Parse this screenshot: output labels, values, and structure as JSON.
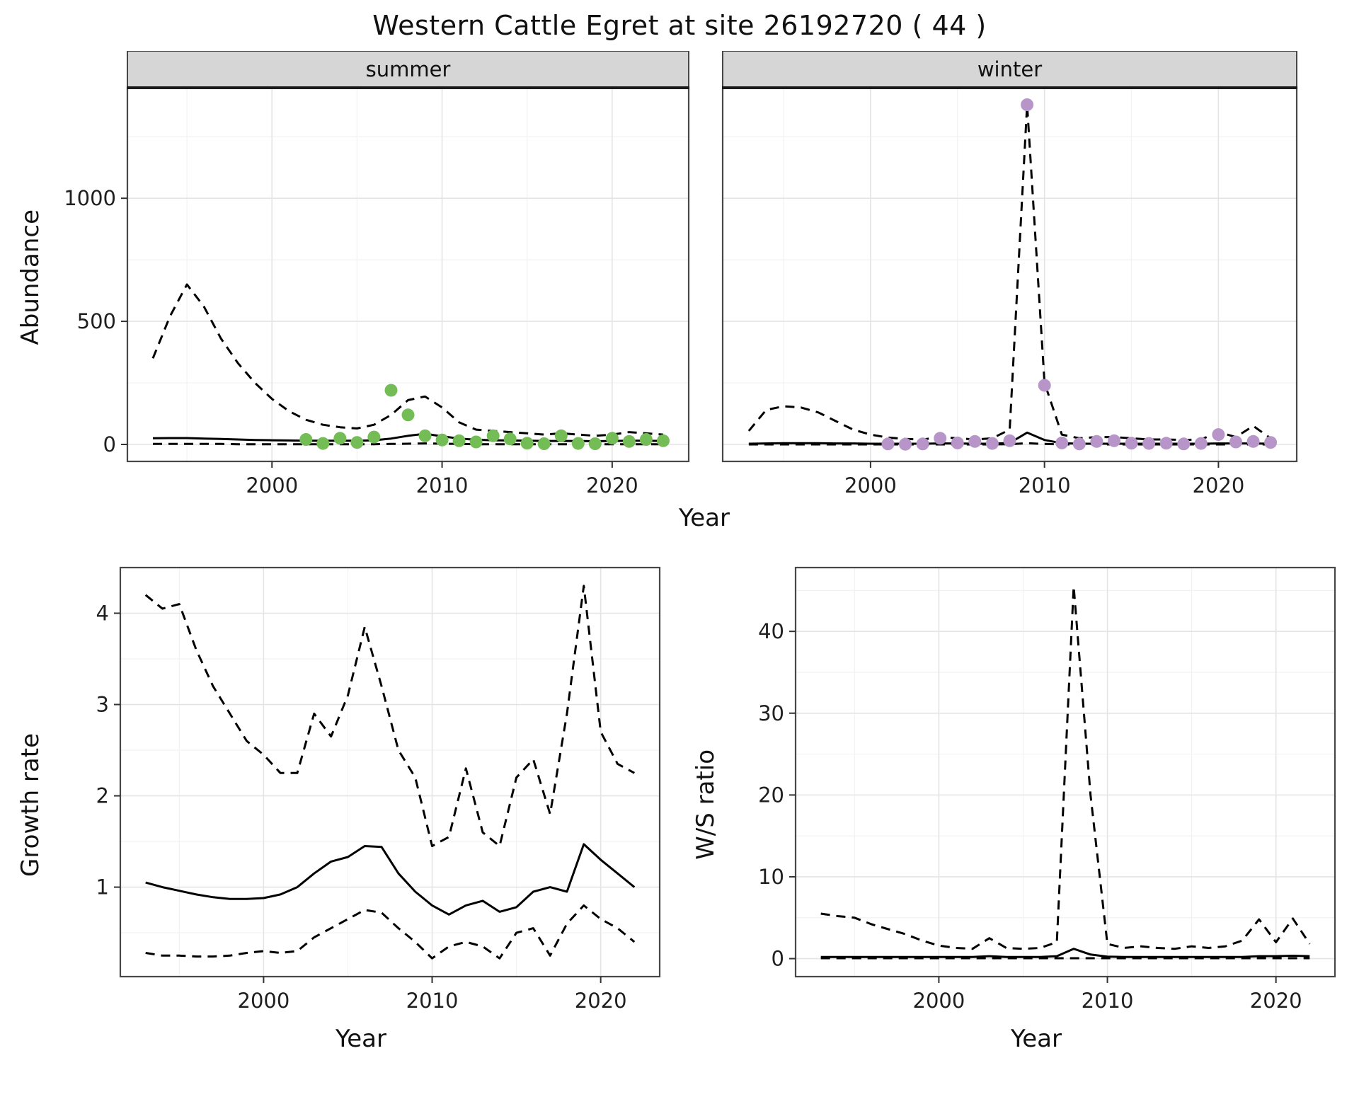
{
  "title": "Western Cattle Egret at site 26192720 ( 44 )",
  "axis_titles": {
    "abundance": "Abundance",
    "year": "Year",
    "growth_rate": "Growth rate",
    "ws_ratio": "W/S ratio"
  },
  "facets": [
    "summer",
    "winter"
  ],
  "colors": {
    "summer_points": "#74bd56",
    "winter_points": "#b795c8",
    "line": "#000000",
    "strip_bg": "#d6d6d6",
    "panel_border": "#474747",
    "grid_major": "#e4e4e4",
    "grid_minor": "#f2f2f2",
    "text": "#1f1f1f"
  },
  "chart_data": [
    {
      "type": "line",
      "panel": "abundance-summer",
      "facet_label": "summer",
      "title": "summer",
      "xlabel": "Year",
      "ylabel": "Abundance",
      "xlim": [
        1991.5,
        2024.5
      ],
      "ylim": [
        -69,
        1449
      ],
      "xticks": [
        2000,
        2010,
        2020
      ],
      "yticks": [
        0,
        500,
        1000
      ],
      "grid": true,
      "years": [
        1993,
        1994,
        1995,
        1996,
        1997,
        1998,
        1999,
        2000,
        2001,
        2002,
        2003,
        2004,
        2005,
        2006,
        2007,
        2008,
        2009,
        2010,
        2011,
        2012,
        2013,
        2014,
        2015,
        2016,
        2017,
        2018,
        2019,
        2020,
        2021,
        2022,
        2023
      ],
      "series": [
        {
          "name": "upper_ci",
          "style": "dashed",
          "y": [
            350,
            520,
            650,
            560,
            430,
            330,
            250,
            185,
            135,
            100,
            80,
            70,
            65,
            80,
            120,
            180,
            195,
            150,
            90,
            60,
            55,
            50,
            45,
            40,
            45,
            40,
            35,
            40,
            50,
            45,
            40
          ]
        },
        {
          "name": "estimate",
          "style": "solid",
          "y": [
            25,
            26,
            26,
            24,
            22,
            20,
            18,
            17,
            16,
            15,
            15,
            15,
            15,
            17,
            24,
            35,
            43,
            33,
            24,
            19,
            17,
            16,
            15,
            14,
            14,
            14,
            13,
            14,
            15,
            15,
            14
          ]
        },
        {
          "name": "lower_ci",
          "style": "dashed",
          "y": [
            2,
            2,
            2,
            2,
            2,
            1,
            1,
            1,
            1,
            1,
            1,
            1,
            1,
            1,
            2,
            3,
            4,
            3,
            2,
            1,
            1,
            1,
            1,
            1,
            1,
            1,
            1,
            1,
            1,
            1,
            1
          ]
        },
        {
          "name": "observed_counts",
          "style": "points",
          "color": "#74bd56",
          "x": [
            2002,
            2003,
            2004,
            2005,
            2006,
            2007,
            2008,
            2009,
            2010,
            2011,
            2012,
            2013,
            2014,
            2015,
            2016,
            2017,
            2018,
            2019,
            2020,
            2021,
            2022,
            2023
          ],
          "y": [
            20,
            4,
            25,
            8,
            30,
            220,
            120,
            35,
            18,
            15,
            10,
            35,
            22,
            5,
            3,
            35,
            4,
            3,
            25,
            12,
            20,
            15
          ]
        }
      ]
    },
    {
      "type": "line",
      "panel": "abundance-winter",
      "facet_label": "winter",
      "title": "winter",
      "xlabel": "Year",
      "ylabel": "Abundance",
      "xlim": [
        1991.5,
        2024.5
      ],
      "ylim": [
        -69,
        1449
      ],
      "xticks": [
        2000,
        2010,
        2020
      ],
      "yticks": [
        0,
        500,
        1000
      ],
      "grid": true,
      "years": [
        1993,
        1994,
        1995,
        1996,
        1997,
        1998,
        1999,
        2000,
        2001,
        2002,
        2003,
        2004,
        2005,
        2006,
        2007,
        2008,
        2009,
        2010,
        2011,
        2012,
        2013,
        2014,
        2015,
        2016,
        2017,
        2018,
        2019,
        2020,
        2021,
        2022,
        2023
      ],
      "series": [
        {
          "name": "upper_ci",
          "style": "dashed",
          "y": [
            55,
            140,
            155,
            150,
            130,
            95,
            60,
            40,
            28,
            22,
            20,
            30,
            25,
            20,
            25,
            60,
            1380,
            250,
            40,
            25,
            30,
            30,
            25,
            20,
            20,
            18,
            20,
            50,
            30,
            75,
            25
          ]
        },
        {
          "name": "estimate",
          "style": "solid",
          "y": [
            3,
            4,
            5,
            5,
            5,
            4,
            4,
            3,
            3,
            3,
            3,
            4,
            4,
            3,
            3,
            6,
            48,
            18,
            5,
            3,
            3,
            3,
            3,
            3,
            3,
            3,
            3,
            4,
            4,
            4,
            3
          ]
        },
        {
          "name": "lower_ci",
          "style": "dashed",
          "y": [
            0,
            0,
            0,
            0,
            0,
            0,
            0,
            0,
            0,
            0,
            0,
            0,
            0,
            0,
            0,
            1,
            5,
            2,
            0,
            0,
            0,
            0,
            0,
            0,
            0,
            0,
            0,
            0,
            0,
            0,
            0
          ]
        },
        {
          "name": "observed_counts",
          "style": "points",
          "color": "#b795c8",
          "x": [
            2001,
            2002,
            2003,
            2004,
            2005,
            2006,
            2007,
            2008,
            2009,
            2010,
            2011,
            2012,
            2013,
            2014,
            2015,
            2016,
            2017,
            2018,
            2019,
            2020,
            2021,
            2022,
            2023
          ],
          "y": [
            2,
            1,
            2,
            25,
            6,
            12,
            4,
            15,
            1380,
            240,
            6,
            2,
            12,
            15,
            5,
            4,
            5,
            2,
            4,
            40,
            10,
            12,
            8
          ]
        }
      ]
    },
    {
      "type": "line",
      "panel": "growth-rate",
      "title": "Growth rate",
      "xlabel": "Year",
      "ylabel": "Growth rate",
      "xlim": [
        1991.5,
        2023.5
      ],
      "ylim": [
        0.02,
        4.5
      ],
      "xticks": [
        2000,
        2010,
        2020
      ],
      "yticks": [
        1,
        2,
        3,
        4
      ],
      "grid": true,
      "years": [
        1993,
        1994,
        1995,
        1996,
        1997,
        1998,
        1999,
        2000,
        2001,
        2002,
        2003,
        2004,
        2005,
        2006,
        2007,
        2008,
        2009,
        2010,
        2011,
        2012,
        2013,
        2014,
        2015,
        2016,
        2017,
        2018,
        2019,
        2020,
        2021,
        2022
      ],
      "series": [
        {
          "name": "upper_ci",
          "style": "dashed",
          "y": [
            4.2,
            4.05,
            4.1,
            3.6,
            3.2,
            2.9,
            2.6,
            2.45,
            2.25,
            2.25,
            2.9,
            2.65,
            3.1,
            3.85,
            3.2,
            2.5,
            2.2,
            1.45,
            1.55,
            2.3,
            1.6,
            1.45,
            2.2,
            2.4,
            1.8,
            2.9,
            4.3,
            2.7,
            2.35,
            2.25
          ]
        },
        {
          "name": "estimate",
          "style": "solid",
          "y": [
            1.05,
            1.0,
            0.96,
            0.92,
            0.89,
            0.87,
            0.87,
            0.88,
            0.92,
            1.0,
            1.15,
            1.28,
            1.33,
            1.45,
            1.44,
            1.15,
            0.95,
            0.8,
            0.7,
            0.8,
            0.85,
            0.73,
            0.78,
            0.95,
            1.0,
            0.95,
            1.47,
            1.3,
            1.15,
            1.0
          ]
        },
        {
          "name": "lower_ci",
          "style": "dashed",
          "y": [
            0.28,
            0.25,
            0.25,
            0.24,
            0.24,
            0.25,
            0.28,
            0.3,
            0.28,
            0.3,
            0.45,
            0.55,
            0.65,
            0.75,
            0.72,
            0.55,
            0.4,
            0.22,
            0.35,
            0.4,
            0.35,
            0.22,
            0.5,
            0.55,
            0.25,
            0.6,
            0.8,
            0.65,
            0.55,
            0.4
          ]
        }
      ]
    },
    {
      "type": "line",
      "panel": "ws-ratio",
      "title": "W/S ratio",
      "xlabel": "Year",
      "ylabel": "W/S ratio",
      "xlim": [
        1991.5,
        2023.5
      ],
      "ylim": [
        -2.2,
        47.8
      ],
      "xticks": [
        2000,
        2010,
        2020
      ],
      "yticks": [
        0,
        10,
        20,
        30,
        40
      ],
      "grid": true,
      "years": [
        1993,
        1994,
        1995,
        1996,
        1997,
        1998,
        1999,
        2000,
        2001,
        2002,
        2003,
        2004,
        2005,
        2006,
        2007,
        2008,
        2009,
        2010,
        2011,
        2012,
        2013,
        2014,
        2015,
        2016,
        2017,
        2018,
        2019,
        2020,
        2021,
        2022
      ],
      "series": [
        {
          "name": "upper_ci",
          "style": "dashed",
          "y": [
            5.5,
            5.2,
            5.0,
            4.2,
            3.6,
            3.0,
            2.2,
            1.6,
            1.3,
            1.2,
            2.5,
            1.3,
            1.2,
            1.3,
            2.0,
            45.5,
            20,
            1.8,
            1.3,
            1.5,
            1.3,
            1.2,
            1.5,
            1.3,
            1.5,
            2.2,
            4.8,
            2.0,
            4.9,
            1.8
          ]
        },
        {
          "name": "estimate",
          "style": "solid",
          "y": [
            0.2,
            0.2,
            0.2,
            0.2,
            0.2,
            0.2,
            0.2,
            0.2,
            0.2,
            0.2,
            0.3,
            0.2,
            0.2,
            0.2,
            0.3,
            1.2,
            0.5,
            0.25,
            0.2,
            0.2,
            0.2,
            0.2,
            0.2,
            0.2,
            0.2,
            0.2,
            0.3,
            0.3,
            0.35,
            0.3
          ]
        },
        {
          "name": "lower_ci",
          "style": "dashed",
          "y": [
            0.05,
            0.05,
            0.05,
            0.05,
            0.05,
            0.05,
            0.05,
            0.05,
            0.05,
            0.05,
            0.05,
            0.05,
            0.05,
            0.05,
            0.05,
            0.05,
            0.05,
            0.05,
            0.05,
            0.05,
            0.05,
            0.05,
            0.05,
            0.05,
            0.05,
            0.05,
            0.05,
            0.05,
            0.05,
            0.05
          ]
        }
      ]
    }
  ]
}
